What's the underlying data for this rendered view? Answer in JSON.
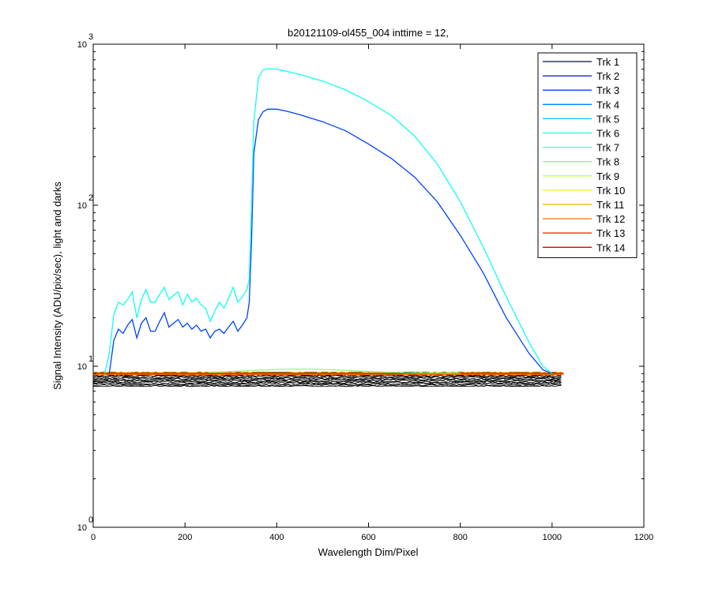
{
  "chart_data": {
    "type": "line",
    "title": "b20121109-ol455_004 inttime = 12,",
    "xlabel": "Wavelength Dim/Pixel",
    "ylabel": "Signal Intensity (ADU/pix/sec), light and darks",
    "xlim": [
      0,
      1200
    ],
    "ylim": [
      1,
      1000
    ],
    "yscale": "log",
    "grid": false,
    "legend_position": "top-right",
    "x_ticks": [
      "0",
      "200",
      "400",
      "600",
      "800",
      "1000",
      "1200"
    ],
    "y_ticks": [
      {
        "base": "10",
        "exp": "0"
      },
      {
        "base": "10",
        "exp": "1"
      },
      {
        "base": "10",
        "exp": "2"
      },
      {
        "base": "10",
        "exp": "3"
      }
    ],
    "series": [
      {
        "name": "Trk 1",
        "color": "#00008f"
      },
      {
        "name": "Trk 2",
        "color": "#0010bf"
      },
      {
        "name": "Trk 3",
        "color": "#0040ff",
        "x": [
          35,
          45,
          55,
          65,
          75,
          85,
          95,
          105,
          115,
          125,
          135,
          145,
          155,
          165,
          175,
          185,
          195,
          205,
          215,
          225,
          235,
          245,
          255,
          265,
          275,
          285,
          295,
          305,
          315,
          325,
          335,
          340,
          345,
          350,
          360,
          370,
          380,
          400,
          420,
          450,
          500,
          550,
          600,
          650,
          700,
          750,
          800,
          850,
          900,
          950,
          980,
          1000
        ],
        "y": [
          9.0,
          14.5,
          17.0,
          16.0,
          18.0,
          19.5,
          15.0,
          18.5,
          20.0,
          16.5,
          16.5,
          19.0,
          21.5,
          17.5,
          18.5,
          19.5,
          17.5,
          18.5,
          17.0,
          18.0,
          16.5,
          17.0,
          15.0,
          16.5,
          17.0,
          16.0,
          17.5,
          19.0,
          16.5,
          18.0,
          20.0,
          25.0,
          60.0,
          210.0,
          340.0,
          380.0,
          395.0,
          395.0,
          385.0,
          365.0,
          330.0,
          290.0,
          240.0,
          195.0,
          150.0,
          105.0,
          65.0,
          38.0,
          20.0,
          12.0,
          9.5,
          9.0
        ]
      },
      {
        "name": "Trk 4",
        "color": "#0080ff"
      },
      {
        "name": "Trk 5",
        "color": "#00bfff"
      },
      {
        "name": "Trk 6",
        "color": "#10ffef",
        "x": [
          25,
          35,
          45,
          55,
          65,
          75,
          85,
          95,
          105,
          115,
          125,
          135,
          145,
          155,
          165,
          175,
          185,
          195,
          205,
          215,
          225,
          235,
          245,
          255,
          265,
          275,
          285,
          295,
          305,
          315,
          325,
          335,
          340,
          345,
          350,
          360,
          370,
          380,
          400,
          420,
          450,
          500,
          550,
          600,
          650,
          700,
          750,
          800,
          850,
          900,
          950,
          980,
          1000
        ],
        "y": [
          9.0,
          12.0,
          21.0,
          25.0,
          24.0,
          26.0,
          29.0,
          20.0,
          26.0,
          30.0,
          25.0,
          25.0,
          28.0,
          31.0,
          26.0,
          27.5,
          29.0,
          24.0,
          28.0,
          25.0,
          26.5,
          24.0,
          23.0,
          19.0,
          22.0,
          25.0,
          23.0,
          26.5,
          31.0,
          25.0,
          27.0,
          30.0,
          35.0,
          100.0,
          330.0,
          620.0,
          690.0,
          705.0,
          700.0,
          680.0,
          650.0,
          590.0,
          520.0,
          440.0,
          360.0,
          270.0,
          180.0,
          105.0,
          55.0,
          27.0,
          14.0,
          10.0,
          9.0
        ]
      },
      {
        "name": "Trk 7",
        "color": "#40ffbf"
      },
      {
        "name": "Trk 8",
        "color": "#80ff80"
      },
      {
        "name": "Trk 9",
        "color": "#bfff40"
      },
      {
        "name": "Trk 10",
        "color": "#ffef10"
      },
      {
        "name": "Trk 11",
        "color": "#ffaf00"
      },
      {
        "name": "Trk 12",
        "color": "#ff7000"
      },
      {
        "name": "Trk 13",
        "color": "#ff3000"
      },
      {
        "name": "Trk 14",
        "color": "#df0000"
      }
    ],
    "dark_band": {
      "x": [
        0,
        1025
      ],
      "y_low": 7.5,
      "y_high": 9.2,
      "color": "#000000"
    }
  }
}
